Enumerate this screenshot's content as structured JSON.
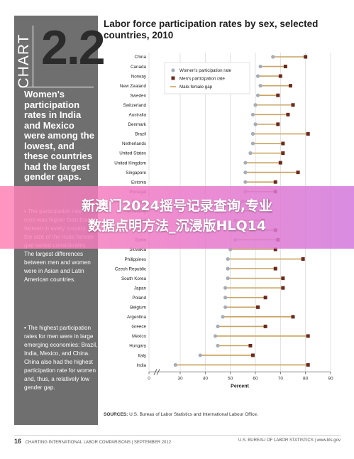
{
  "sidebar": {
    "chart_word": "CHART",
    "chart_number": "2.2",
    "lead": "Women's participation rates in India and Mexico were among the lowest, and these countries had the largest gender gaps.",
    "bullet_1": "The participation rate of men was higher than that of women in every country, but the size of the male-female gap varied considerably. The largest differences between men and women were in Asian and Latin American countries.",
    "bullet_2": "The highest participation rates for men were in large emerging economies: Brazil, India, Mexico, and China. China also had the highest participation rate for women and, thus, a relatively low gender gap.",
    "bullet_mark": "•"
  },
  "title": "Labor force participation rates by sex, selected countries, 2010",
  "sources": {
    "label": "SOURCES:",
    "text": "U.S. Bureau of Labor Statistics and International Labour Office."
  },
  "footer": {
    "page_number": "16",
    "left_text": "CHARTING INTERNATIONAL LABOR COMPARISONS | SEPTEMBER 2012",
    "right_text": "U.S. BUREAU OF LABOR STATISTICS | www.bls.gov"
  },
  "overlay_banner": {
    "line1": "新澳门2024摇号记录查询,专业",
    "line2": "数据点明方法_沉浸版HLQ14"
  },
  "colors": {
    "women": "#a4adb9",
    "men": "#6b2a1c",
    "gap": "#c9a462",
    "sidebar": "#6f6f6f"
  },
  "chart_data": {
    "type": "dumbbell",
    "title": "Labor force participation rates by sex, selected countries, 2010",
    "xlabel": "Percent",
    "xlim": [
      0,
      90
    ],
    "xticks": [
      0,
      30,
      40,
      50,
      60,
      70,
      80,
      90
    ],
    "x_axis_break": true,
    "legend_position": "top-left",
    "series": [
      {
        "name": "Women's participation rate",
        "key": "women"
      },
      {
        "name": "Men's participation rate",
        "key": "men"
      },
      {
        "name": "Male-female gap",
        "key": "gap"
      }
    ],
    "categories": [
      "China",
      "Canada",
      "Norway",
      "New Zealand",
      "Sweden",
      "Switzerland",
      "Australia",
      "Denmark",
      "Brazil",
      "Netherlands",
      "United States",
      "United Kingdom",
      "Singapore",
      "Estonia",
      "Portugal",
      "Finland",
      "Germany",
      "Israel",
      "Austria",
      "Spain",
      "Slovakia",
      "Philippines",
      "Czech Republic",
      "South Korea",
      "Japan",
      "Poland",
      "Belgium",
      "Argentina",
      "Greece",
      "Mexico",
      "Hungary",
      "Italy",
      "India"
    ],
    "women": [
      67,
      62,
      61,
      62,
      61,
      60,
      59,
      60,
      59,
      59,
      58,
      56,
      56,
      56,
      56,
      55,
      53,
      52,
      52,
      52,
      50,
      49,
      49,
      49,
      48,
      48,
      48,
      47,
      45,
      44,
      45,
      38,
      28
    ],
    "men": [
      80,
      72,
      70,
      74,
      69,
      75,
      73,
      69,
      81,
      71,
      71,
      70,
      77,
      68,
      68,
      65,
      66,
      63,
      68,
      69,
      68,
      79,
      68,
      71,
      71,
      64,
      61,
      75,
      64,
      81,
      58,
      59,
      81
    ]
  }
}
